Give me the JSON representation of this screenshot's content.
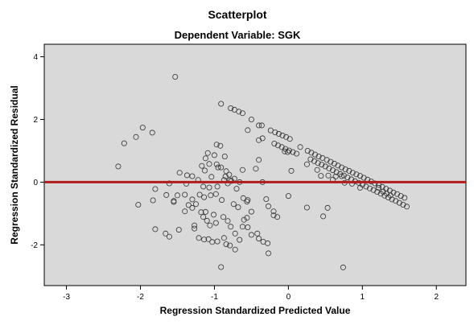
{
  "chart_data": {
    "type": "scatter",
    "title": "Scatterplot",
    "subtitle": "Dependent Variable: SGK",
    "xlabel": "Regression Standardized Predicted Value",
    "ylabel": "Regression Standardized Residual",
    "xlim": [
      -3.3,
      2.4
    ],
    "ylim": [
      -3.3,
      4.4
    ],
    "x_ticks": [
      -3,
      -2,
      -1,
      0,
      1,
      2
    ],
    "y_ticks": [
      -2,
      0,
      2,
      4
    ],
    "x_tick_labels": [
      "-3",
      "-2",
      "-1",
      "0",
      "1",
      "2"
    ],
    "y_tick_labels": [
      "-2",
      "0",
      "2",
      "4"
    ],
    "reference_line": {
      "y": 0,
      "color": "#b01c1c"
    },
    "plot_background": "#d9d9d9",
    "marker": "open-circle",
    "grid": false,
    "points": [
      [
        -1.53,
        3.36
      ],
      [
        -0.91,
        2.5
      ],
      [
        -0.78,
        2.36
      ],
      [
        -0.73,
        2.31
      ],
      [
        -0.67,
        2.25
      ],
      [
        -0.62,
        2.2
      ],
      [
        -0.5,
        2.0
      ],
      [
        -0.55,
        1.66
      ],
      [
        -0.4,
        1.81
      ],
      [
        -0.36,
        1.81
      ],
      [
        -0.24,
        1.65
      ],
      [
        -0.18,
        1.59
      ],
      [
        -0.13,
        1.54
      ],
      [
        -0.08,
        1.49
      ],
      [
        -0.03,
        1.44
      ],
      [
        0.02,
        1.38
      ],
      [
        -0.4,
        1.34
      ],
      [
        -0.35,
        1.4
      ],
      [
        -0.19,
        1.23
      ],
      [
        -0.14,
        1.17
      ],
      [
        -0.09,
        1.12
      ],
      [
        -0.04,
        1.06
      ],
      [
        0.01,
        1.01
      ],
      [
        0.06,
        0.96
      ],
      [
        0.11,
        0.91
      ],
      [
        0.16,
        1.12
      ],
      [
        -0.01,
        0.96
      ],
      [
        -0.05,
        0.98
      ],
      [
        0.26,
        1.0
      ],
      [
        0.31,
        0.94
      ],
      [
        0.36,
        0.88
      ],
      [
        0.41,
        0.82
      ],
      [
        0.46,
        0.77
      ],
      [
        0.52,
        0.71
      ],
      [
        0.57,
        0.65
      ],
      [
        0.62,
        0.59
      ],
      [
        0.67,
        0.53
      ],
      [
        0.72,
        0.47
      ],
      [
        0.77,
        0.41
      ],
      [
        0.82,
        0.36
      ],
      [
        0.87,
        0.3
      ],
      [
        0.92,
        0.25
      ],
      [
        0.97,
        0.2
      ],
      [
        1.02,
        0.14
      ],
      [
        1.07,
        0.08
      ],
      [
        1.12,
        0.02
      ],
      [
        1.17,
        -0.04
      ],
      [
        1.22,
        -0.09
      ],
      [
        1.27,
        -0.15
      ],
      [
        1.32,
        -0.21
      ],
      [
        1.37,
        -0.27
      ],
      [
        1.42,
        -0.33
      ],
      [
        1.47,
        -0.38
      ],
      [
        1.52,
        -0.44
      ],
      [
        1.57,
        -0.5
      ],
      [
        1.6,
        -0.78
      ],
      [
        1.55,
        -0.72
      ],
      [
        1.5,
        -0.66
      ],
      [
        1.45,
        -0.6
      ],
      [
        1.4,
        -0.55
      ],
      [
        1.35,
        -0.49
      ],
      [
        1.3,
        -0.43
      ],
      [
        1.25,
        -0.37
      ],
      [
        1.2,
        -0.31
      ],
      [
        1.15,
        -0.25
      ],
      [
        1.1,
        -0.2
      ],
      [
        1.05,
        -0.14
      ],
      [
        1.0,
        -0.08
      ],
      [
        0.95,
        -0.02
      ],
      [
        0.9,
        0.03
      ],
      [
        0.85,
        0.09
      ],
      [
        0.8,
        0.15
      ],
      [
        0.75,
        0.21
      ],
      [
        0.7,
        0.26
      ],
      [
        0.65,
        0.32
      ],
      [
        0.6,
        0.38
      ],
      [
        0.55,
        0.44
      ],
      [
        0.5,
        0.5
      ],
      [
        0.45,
        0.56
      ],
      [
        0.4,
        0.61
      ],
      [
        0.35,
        0.67
      ],
      [
        0.3,
        0.73
      ],
      [
        0.25,
        0.57
      ],
      [
        0.04,
        0.36
      ],
      [
        0.39,
        0.39
      ],
      [
        0.44,
        0.2
      ],
      [
        0.54,
        0.21
      ],
      [
        0.64,
        0.18
      ],
      [
        0.72,
        0.19
      ],
      [
        0.76,
        -0.02
      ],
      [
        0.86,
        -0.05
      ],
      [
        0.97,
        -0.18
      ],
      [
        1.22,
        -0.18
      ],
      [
        1.28,
        -0.3
      ],
      [
        1.33,
        -0.36
      ],
      [
        1.38,
        -0.42
      ],
      [
        0.53,
        -0.82
      ],
      [
        0.6,
        0.08
      ],
      [
        0.74,
        -2.72
      ],
      [
        -2.3,
        0.5
      ],
      [
        -2.22,
        1.24
      ],
      [
        -1.97,
        1.74
      ],
      [
        -1.84,
        1.58
      ],
      [
        -2.06,
        1.44
      ],
      [
        -1.83,
        -0.58
      ],
      [
        -1.8,
        -0.22
      ],
      [
        -2.03,
        -0.72
      ],
      [
        -1.61,
        -0.04
      ],
      [
        -1.8,
        -1.5
      ],
      [
        -1.66,
        -1.64
      ],
      [
        -1.61,
        -1.74
      ],
      [
        -1.48,
        -1.52
      ],
      [
        -1.55,
        -0.6
      ],
      [
        -1.5,
        -0.42
      ],
      [
        -1.4,
        -0.4
      ],
      [
        -1.47,
        0.3
      ],
      [
        -1.37,
        0.22
      ],
      [
        -1.3,
        -0.55
      ],
      [
        -1.25,
        -0.7
      ],
      [
        -1.3,
        -0.82
      ],
      [
        -1.27,
        -1.38
      ],
      [
        -1.27,
        -1.48
      ],
      [
        -1.21,
        -1.78
      ],
      [
        -1.14,
        -1.83
      ],
      [
        -1.08,
        -1.82
      ],
      [
        -1.03,
        -1.91
      ],
      [
        -0.96,
        -1.89
      ],
      [
        -0.87,
        -1.78
      ],
      [
        -0.84,
        -1.98
      ],
      [
        -0.91,
        -2.71
      ],
      [
        -1.13,
        0.37
      ],
      [
        -1.04,
        0.17
      ],
      [
        -1.15,
        -1.11
      ],
      [
        -1.1,
        -1.23
      ],
      [
        -1.06,
        -1.38
      ],
      [
        -0.98,
        -1.3
      ],
      [
        -0.96,
        -0.14
      ],
      [
        -1.07,
        0.58
      ],
      [
        -1.0,
        0.86
      ],
      [
        -0.97,
        1.2
      ],
      [
        -0.92,
        1.16
      ],
      [
        -0.86,
        0.82
      ],
      [
        -0.8,
        0.24
      ],
      [
        -0.73,
        0.11
      ],
      [
        -0.66,
        0.0
      ],
      [
        -0.61,
        -0.51
      ],
      [
        -0.56,
        -0.62
      ],
      [
        -0.5,
        -0.94
      ],
      [
        -0.56,
        -1.14
      ],
      [
        -0.62,
        -1.42
      ],
      [
        -0.6,
        -1.2
      ],
      [
        -0.55,
        -1.44
      ],
      [
        -0.5,
        -1.68
      ],
      [
        -0.42,
        -1.64
      ],
      [
        -0.34,
        -1.9
      ],
      [
        -0.28,
        -1.95
      ],
      [
        -0.27,
        -2.27
      ],
      [
        -0.4,
        -1.8
      ],
      [
        -0.3,
        -0.54
      ],
      [
        -0.27,
        -0.77
      ],
      [
        -0.2,
        -1.06
      ],
      [
        -0.15,
        -1.11
      ],
      [
        -0.35,
        0.0
      ],
      [
        -0.44,
        0.43
      ],
      [
        -0.4,
        0.71
      ],
      [
        -0.2,
        -0.93
      ],
      [
        0.0,
        -0.44
      ],
      [
        0.25,
        -0.81
      ],
      [
        0.47,
        -1.09
      ],
      [
        -0.95,
        0.47
      ],
      [
        -0.87,
        0.07
      ],
      [
        -0.7,
        -0.21
      ],
      [
        -0.77,
        0.04
      ],
      [
        -0.82,
        -0.04
      ],
      [
        -0.85,
        0.18
      ],
      [
        -0.98,
        -0.38
      ],
      [
        -1.05,
        -0.42
      ],
      [
        -1.14,
        -0.48
      ],
      [
        -1.2,
        -0.4
      ],
      [
        -1.35,
        -0.73
      ],
      [
        -1.4,
        -0.93
      ],
      [
        -1.55,
        -0.63
      ],
      [
        -1.65,
        -0.41
      ],
      [
        -1.18,
        -0.96
      ],
      [
        -1.12,
        -0.95
      ],
      [
        -1.01,
        -1.04
      ],
      [
        -0.88,
        -1.11
      ],
      [
        -0.82,
        -1.24
      ],
      [
        -0.78,
        -1.42
      ],
      [
        -0.72,
        -1.64
      ],
      [
        -0.66,
        -1.84
      ],
      [
        -0.79,
        -2.02
      ],
      [
        -0.72,
        -2.15
      ],
      [
        -0.68,
        -0.8
      ],
      [
        -0.74,
        -0.7
      ],
      [
        -0.9,
        -0.57
      ],
      [
        -1.07,
        -0.17
      ],
      [
        -1.15,
        -0.14
      ],
      [
        -1.22,
        0.07
      ],
      [
        -1.3,
        0.19
      ],
      [
        -1.38,
        -0.05
      ],
      [
        -1.12,
        0.76
      ],
      [
        -1.09,
        0.93
      ],
      [
        -1.17,
        0.52
      ],
      [
        -0.97,
        0.57
      ],
      [
        -0.84,
        0.35
      ],
      [
        -0.91,
        0.47
      ],
      [
        -0.79,
        0.06
      ],
      [
        -0.62,
        0.39
      ],
      [
        -0.55,
        -0.57
      ]
    ]
  }
}
